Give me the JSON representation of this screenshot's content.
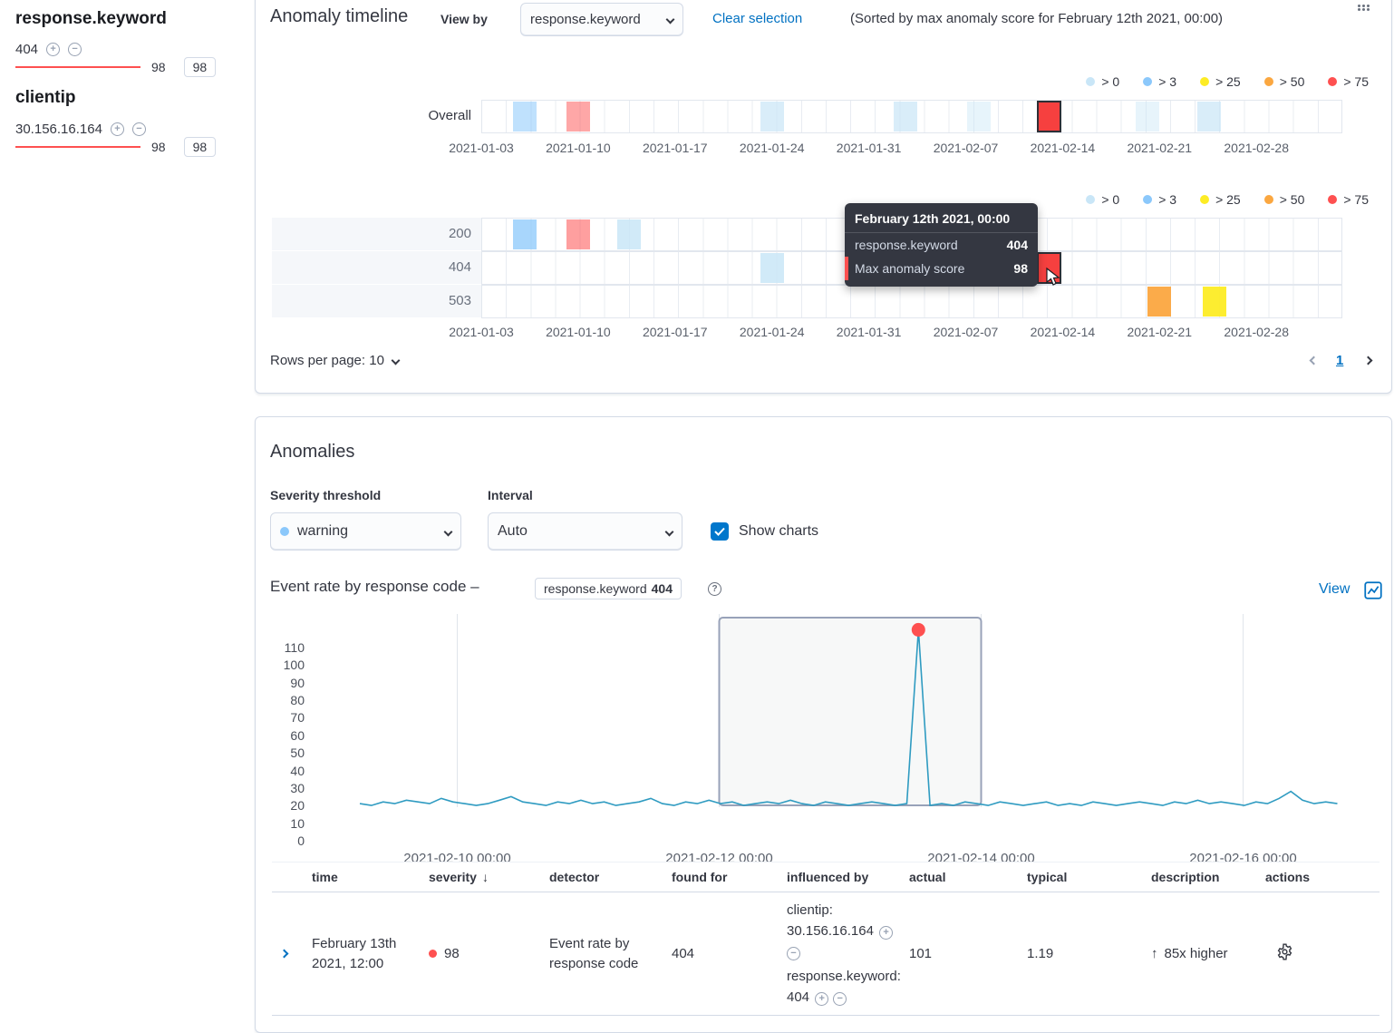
{
  "sidebar": {
    "groups": [
      {
        "title": "response.keyword",
        "value": "404",
        "score": "98",
        "badge": "98"
      },
      {
        "title": "clientip",
        "value": "30.156.16.164",
        "score": "98",
        "badge": "98"
      }
    ]
  },
  "timeline": {
    "title": "Anomaly timeline",
    "view_by_label": "View by",
    "view_by_value": "response.keyword",
    "clear_selection": "Clear selection",
    "sorted_note": "(Sorted by max anomaly score for February 12th 2021, 00:00)",
    "overall_label": "Overall",
    "legend": [
      {
        "label": "> 0",
        "color": "#c9e6f7"
      },
      {
        "label": "> 3",
        "color": "#8bc8fb"
      },
      {
        "label": "> 25",
        "color": "#fdec25"
      },
      {
        "label": "> 50",
        "color": "#fba740"
      },
      {
        "label": "> 75",
        "color": "#fe5050"
      }
    ],
    "dates": [
      "2021-01-03",
      "2021-01-10",
      "2021-01-17",
      "2021-01-24",
      "2021-01-31",
      "2021-02-07",
      "2021-02-14",
      "2021-02-21",
      "2021-02-28"
    ],
    "overall_cells": [
      {
        "x": 34,
        "color": "#8bc8fb",
        "opacity": 0.55
      },
      {
        "x": 93,
        "color": "#fe5050",
        "opacity": 0.5
      },
      {
        "x": 307,
        "color": "#c9e6f7",
        "opacity": 0.7
      },
      {
        "x": 454,
        "color": "#c9e6f7",
        "opacity": 0.7
      },
      {
        "x": 535,
        "color": "#c9e6f7",
        "opacity": 0.45
      },
      {
        "x": 612,
        "color": "#f6403f",
        "selected": true
      },
      {
        "x": 721,
        "color": "#c9e6f7",
        "opacity": 0.45
      },
      {
        "x": 789,
        "color": "#c9e6f7",
        "opacity": 0.7
      }
    ],
    "rows": [
      {
        "label": "200",
        "cells": [
          {
            "x": 34,
            "color": "#8bc8fb",
            "opacity": 0.75
          },
          {
            "x": 93,
            "color": "#fe5050",
            "opacity": 0.55
          },
          {
            "x": 149,
            "color": "#c9e6f7",
            "opacity": 0.85
          }
        ]
      },
      {
        "label": "404",
        "cells": [
          {
            "x": 307,
            "color": "#c9e6f7",
            "opacity": 0.85
          },
          {
            "x": 612,
            "color": "#f6403f",
            "selected": true
          }
        ]
      },
      {
        "label": "503",
        "cells": [
          {
            "x": 734,
            "color": "#fba740",
            "opacity": 0.95
          },
          {
            "x": 795,
            "color": "#fdec25",
            "opacity": 0.95
          }
        ]
      }
    ],
    "rows_per_page": "Rows per page: 10"
  },
  "tooltip": {
    "title": "February 12th 2021, 00:00",
    "rows": [
      {
        "label": "response.keyword",
        "value": "404"
      },
      {
        "label": "Max anomaly score",
        "value": "98",
        "marked": true
      }
    ]
  },
  "pagination": {
    "page": "1"
  },
  "anomalies": {
    "title": "Anomalies",
    "severity_label": "Severity threshold",
    "severity_value": "warning",
    "interval_label": "Interval",
    "interval_value": "Auto",
    "show_charts": "Show charts",
    "chart_title": "Event rate by response code –",
    "chart_badge_field": "response.keyword",
    "chart_badge_value": "404",
    "view_link": "View"
  },
  "chart_data": {
    "type": "line",
    "title": "Event rate by response code",
    "ylabel": "",
    "xlabel": "",
    "ylim": [
      0,
      110
    ],
    "ytick_step": 10,
    "xticks": [
      {
        "t": 0.125,
        "label": "2021-02-10 00:00"
      },
      {
        "t": 0.375,
        "label": "2021-02-12 00:00"
      },
      {
        "t": 0.625,
        "label": "2021-02-14 00:00"
      },
      {
        "t": 0.875,
        "label": "2021-02-16 00:00"
      }
    ],
    "t_start": 0.032,
    "t_end": 0.965,
    "values": [
      2,
      1,
      3,
      2,
      4,
      3,
      2,
      5,
      3,
      2,
      1,
      2,
      4,
      6,
      3,
      2,
      1,
      3,
      2,
      4,
      2,
      3,
      1,
      2,
      3,
      5,
      2,
      1,
      3,
      2,
      4,
      2,
      3,
      1,
      2,
      3,
      2,
      4,
      2,
      1,
      3,
      2,
      1,
      2,
      3,
      2,
      1,
      2,
      101,
      1,
      2,
      1,
      3,
      2,
      1,
      3,
      2,
      1,
      2,
      3,
      1,
      2,
      1,
      3,
      2,
      1,
      2,
      3,
      2,
      1,
      3,
      2,
      4,
      2,
      3,
      2,
      1,
      3,
      2,
      5,
      9,
      4,
      2,
      3,
      2
    ],
    "anomaly": {
      "index": 48,
      "value": 101,
      "color": "#fe5050"
    },
    "selection": {
      "from": 0.375,
      "to": 0.625
    },
    "line_color": "#2f9bc1",
    "grid_color": "#e0e5eb"
  },
  "table": {
    "columns": [
      "time",
      "severity",
      "detector",
      "found for",
      "influenced by",
      "actual",
      "typical",
      "description",
      "actions"
    ],
    "row": {
      "time": "February 13th 2021, 12:00",
      "severity": "98",
      "detector": "Event rate by response code",
      "found_for": "404",
      "influenced_1": "clientip: 30.156.16.164",
      "influenced_2": "response.keyword: 404",
      "actual": "101",
      "typical": "1.19",
      "description": "85x higher"
    }
  }
}
